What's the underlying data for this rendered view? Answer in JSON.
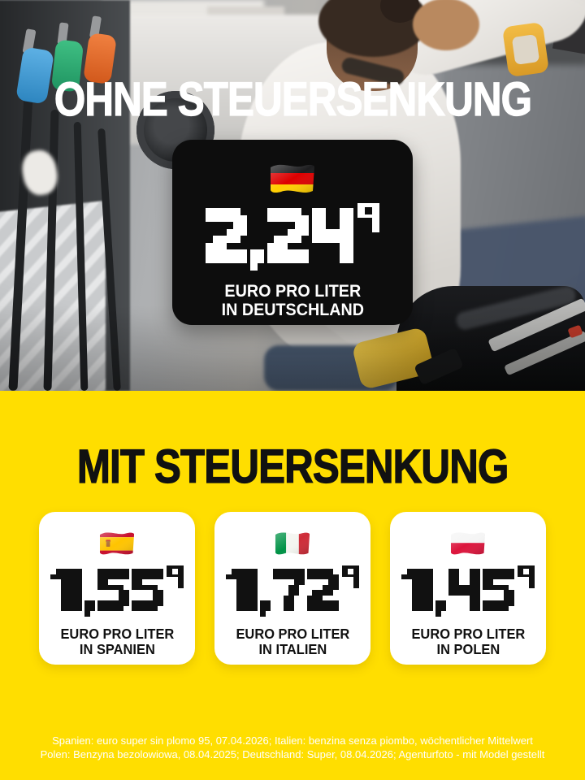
{
  "colors": {
    "background_yellow": "#FFDE00",
    "price_box_black": "#0D0D0D",
    "card_white": "#FFFFFF",
    "headline_light": "#FFFFFF",
    "headline_dark": "#111111",
    "flag_colors": {
      "germany": [
        "#1D1D1F",
        "#DD0000",
        "#FFCE00"
      ],
      "spain": [
        "#C8102E",
        "#FFC400"
      ],
      "italy": [
        "#009246",
        "#F4F5F0",
        "#CE2B37"
      ],
      "poland": [
        "#F5F5F5",
        "#DC143C"
      ]
    }
  },
  "top_section": {
    "headline": "OHNE STEUERSENKUNG",
    "price_card": {
      "flag_icon": "germany-flag-icon",
      "price": "2,24",
      "price_superscript": "9",
      "unit_line1": "EURO PRO LITER",
      "unit_line2": "IN DEUTSCHLAND"
    }
  },
  "bottom_section": {
    "headline": "MIT STEUERSENKUNG",
    "cards": [
      {
        "flag_icon": "spain-flag-icon",
        "price": "1,55",
        "price_superscript": "9",
        "unit_line1": "EURO PRO LITER",
        "unit_line2": "IN SPANIEN"
      },
      {
        "flag_icon": "italy-flag-icon",
        "price": "1,72",
        "price_superscript": "9",
        "unit_line1": "EURO PRO LITER",
        "unit_line2": "IN ITALIEN"
      },
      {
        "flag_icon": "poland-flag-icon",
        "price": "1,45",
        "price_superscript": "9",
        "unit_line1": "EURO PRO LITER",
        "unit_line2": "IN POLEN"
      }
    ]
  },
  "footer": {
    "disclaimer_line1": "Spanien: euro super sin plomo 95, 07.04.2026; Italien: benzina senza piombo, wöchentlicher Mittelwert",
    "disclaimer_line2": "Polen: Benzyna bezolowiowa, 08.04.2025; Deutschland: Super, 08.04.2026; Agenturfoto - mit Model gestellt"
  }
}
